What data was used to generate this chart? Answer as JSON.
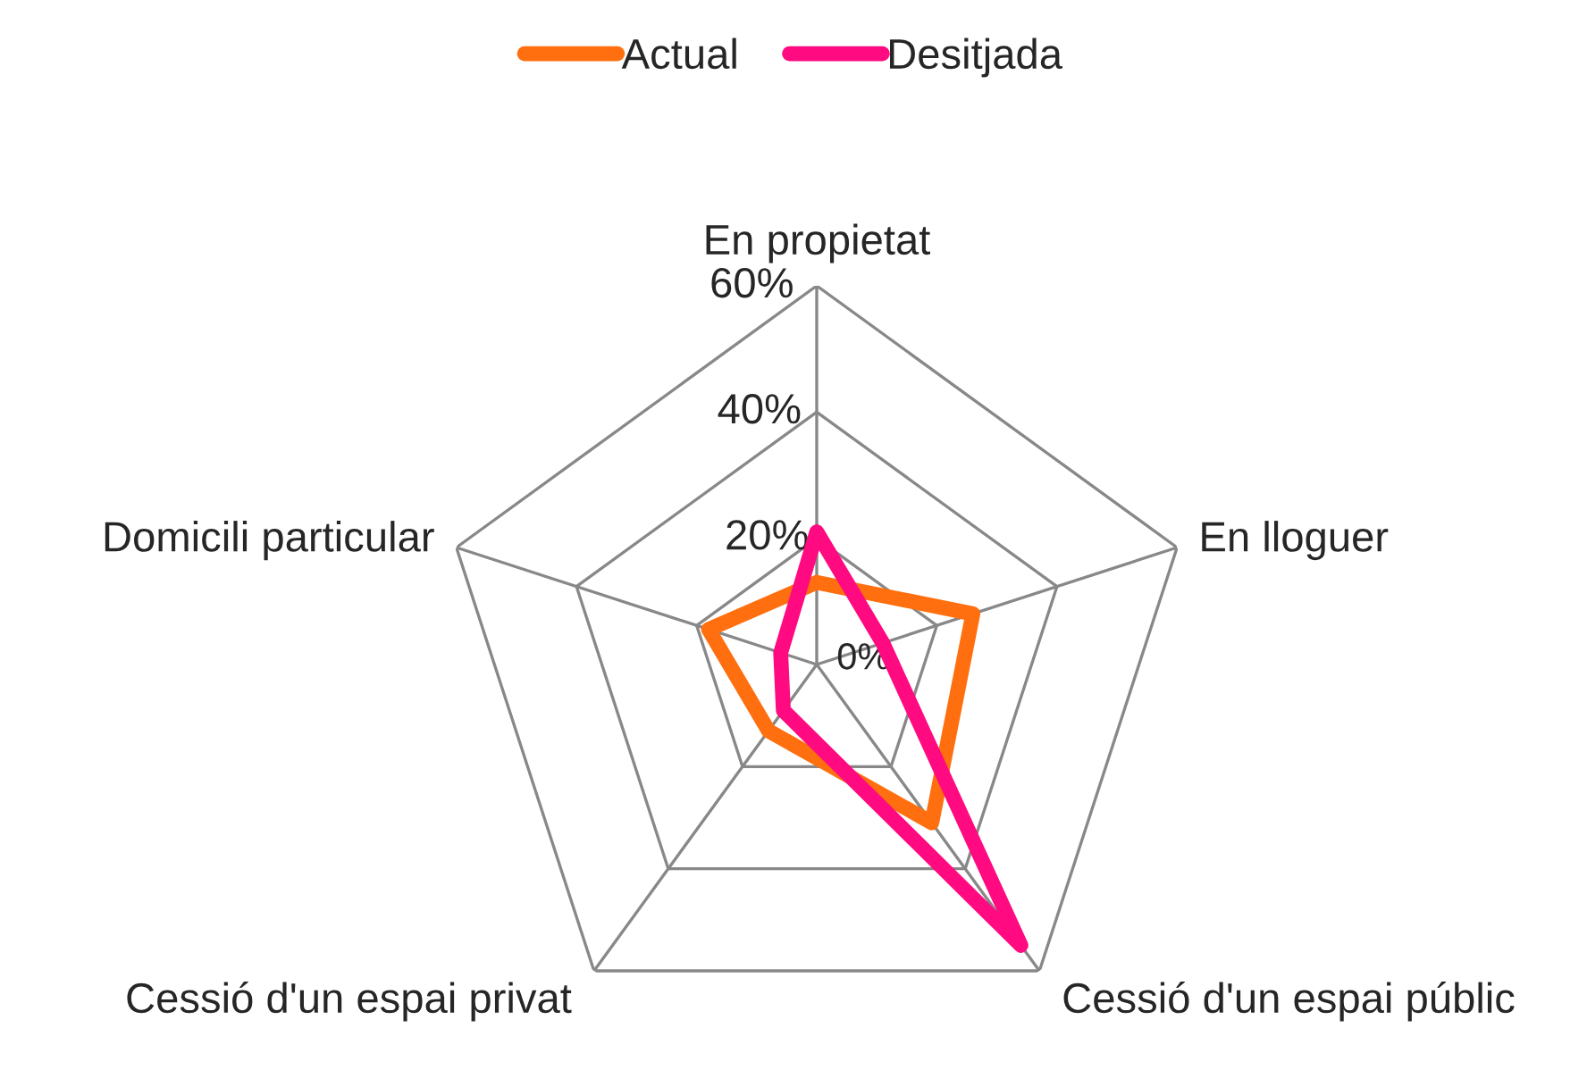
{
  "chart_data": {
    "type": "radar",
    "categories": [
      "En propietat",
      "En lloguer",
      "Cessió d'un espai públic",
      "Cessió d'un espai privat",
      "Domicili particular"
    ],
    "series": [
      {
        "name": "Actual",
        "color": "#ff6f0f",
        "values": [
          13,
          26,
          31,
          13,
          18
        ]
      },
      {
        "name": "Desitjada",
        "color": "#ff0a80",
        "values": [
          21,
          11,
          55,
          9,
          6
        ]
      }
    ],
    "ylim": [
      0,
      60
    ],
    "yticks": [
      {
        "value": 0,
        "label": "0%"
      },
      {
        "value": 20,
        "label": "20%"
      },
      {
        "value": 40,
        "label": "40%"
      },
      {
        "value": 60,
        "label": "60%"
      }
    ],
    "grid": true,
    "legend": "top",
    "marker": "none"
  }
}
